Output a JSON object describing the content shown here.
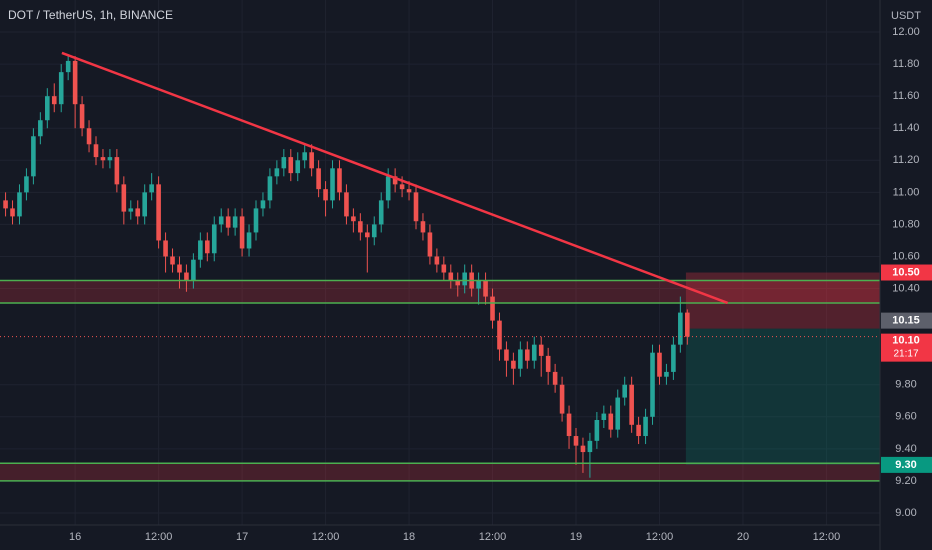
{
  "chart_data": {
    "type": "candlestick",
    "title": "DOT / TetherUS, 1h, BINANCE",
    "y_unit": "USDT",
    "up_color": "#26a69a",
    "down_color": "#ef5350",
    "grid": true,
    "xlim": [
      -10.8,
      115.7
    ],
    "ylim": [
      8.925,
      12.2
    ],
    "xticks": [
      {
        "value": 0,
        "label": "16"
      },
      {
        "value": 12,
        "label": "12:00"
      },
      {
        "value": 24,
        "label": "17"
      },
      {
        "value": 36,
        "label": "12:00"
      },
      {
        "value": 48,
        "label": "18"
      },
      {
        "value": 60,
        "label": "12:00"
      },
      {
        "value": 72,
        "label": "19"
      },
      {
        "value": 84,
        "label": "12:00"
      },
      {
        "value": 96,
        "label": "20"
      },
      {
        "value": 108,
        "label": "12:00"
      }
    ],
    "yticks": [
      {
        "value": 12.0,
        "label": "12.00"
      },
      {
        "value": 11.8,
        "label": "11.80"
      },
      {
        "value": 11.6,
        "label": "11.60"
      },
      {
        "value": 11.4,
        "label": "11.40"
      },
      {
        "value": 11.2,
        "label": "11.20"
      },
      {
        "value": 11.0,
        "label": "11.00"
      },
      {
        "value": 10.8,
        "label": "10.80"
      },
      {
        "value": 10.6,
        "label": "10.60"
      },
      {
        "value": 10.4,
        "label": "10.40"
      },
      {
        "value": 9.8,
        "label": "9.80"
      },
      {
        "value": 9.6,
        "label": "9.60"
      },
      {
        "value": 9.4,
        "label": "9.40"
      },
      {
        "value": 9.2,
        "label": "9.20"
      },
      {
        "value": 9.0,
        "label": "9.00"
      }
    ],
    "x": [
      -10,
      -9,
      -8,
      -7,
      -6,
      -5,
      -4,
      -3,
      -2,
      -1,
      0,
      1,
      2,
      3,
      4,
      5,
      6,
      7,
      8,
      9,
      10,
      11,
      12,
      13,
      14,
      15,
      16,
      17,
      18,
      19,
      20,
      21,
      22,
      23,
      24,
      25,
      26,
      27,
      28,
      29,
      30,
      31,
      32,
      33,
      34,
      35,
      36,
      37,
      38,
      39,
      40,
      41,
      42,
      43,
      44,
      45,
      46,
      47,
      48,
      49,
      50,
      51,
      52,
      53,
      54,
      55,
      56,
      57,
      58,
      59,
      60,
      61,
      62,
      63,
      64,
      65,
      66,
      67,
      68,
      69,
      70,
      71,
      72,
      73,
      74,
      75,
      76,
      77,
      78,
      79,
      80,
      81,
      82,
      83,
      84,
      85,
      86,
      87,
      88
    ],
    "open": [
      10.95,
      10.9,
      10.85,
      11.0,
      11.1,
      11.35,
      11.45,
      11.6,
      11.55,
      11.75,
      11.82,
      11.55,
      11.4,
      11.3,
      11.22,
      11.2,
      11.22,
      11.05,
      10.88,
      10.9,
      10.85,
      11.0,
      11.05,
      10.7,
      10.6,
      10.55,
      10.5,
      10.45,
      10.58,
      10.7,
      10.62,
      10.8,
      10.85,
      10.78,
      10.85,
      10.65,
      10.75,
      10.9,
      10.95,
      11.1,
      11.15,
      11.22,
      11.12,
      11.2,
      11.25,
      11.15,
      11.02,
      10.95,
      11.15,
      11.0,
      10.85,
      10.82,
      10.75,
      10.72,
      10.8,
      10.95,
      11.1,
      11.05,
      11.02,
      11.0,
      10.82,
      10.75,
      10.6,
      10.55,
      10.5,
      10.45,
      10.42,
      10.5,
      10.4,
      10.45,
      10.35,
      10.2,
      10.02,
      9.95,
      9.9,
      10.02,
      9.95,
      10.05,
      9.98,
      9.88,
      9.8,
      9.62,
      9.48,
      9.42,
      9.38,
      9.45,
      9.58,
      9.62,
      9.52,
      9.72,
      9.8,
      9.55,
      9.48,
      9.6,
      10.0,
      9.85,
      9.88,
      10.05,
      10.25
    ],
    "high": [
      11.0,
      10.95,
      11.05,
      11.15,
      11.4,
      11.5,
      11.65,
      11.68,
      11.8,
      11.86,
      11.85,
      11.6,
      11.45,
      11.35,
      11.27,
      11.27,
      11.27,
      11.1,
      10.95,
      10.95,
      11.05,
      11.12,
      11.1,
      10.75,
      10.65,
      10.6,
      10.55,
      10.62,
      10.75,
      10.75,
      10.85,
      10.9,
      10.9,
      10.9,
      10.9,
      10.8,
      10.95,
      11.0,
      11.15,
      11.2,
      11.27,
      11.27,
      11.25,
      11.3,
      11.3,
      11.2,
      11.07,
      11.2,
      11.2,
      11.05,
      10.9,
      10.87,
      10.8,
      10.85,
      11.0,
      11.15,
      11.15,
      11.1,
      11.07,
      11.05,
      10.87,
      10.8,
      10.65,
      10.6,
      10.55,
      10.5,
      10.55,
      10.55,
      10.5,
      10.5,
      10.4,
      10.25,
      10.07,
      10.0,
      10.07,
      10.07,
      10.1,
      10.1,
      10.03,
      9.93,
      9.85,
      9.67,
      9.53,
      9.47,
      9.5,
      9.63,
      9.67,
      9.67,
      9.77,
      9.85,
      9.85,
      9.6,
      9.65,
      10.05,
      10.05,
      9.93,
      10.1,
      10.35,
      10.27
    ],
    "low": [
      10.85,
      10.8,
      10.8,
      10.95,
      11.05,
      11.3,
      11.4,
      11.5,
      11.5,
      11.7,
      11.4,
      11.35,
      11.25,
      11.17,
      11.15,
      11.15,
      11.0,
      10.8,
      10.83,
      10.8,
      10.8,
      10.95,
      10.65,
      10.5,
      10.5,
      10.4,
      10.38,
      10.4,
      10.53,
      10.57,
      10.57,
      10.75,
      10.73,
      10.73,
      10.6,
      10.6,
      10.7,
      10.85,
      10.9,
      11.05,
      11.1,
      11.07,
      11.07,
      11.15,
      11.1,
      10.97,
      10.85,
      10.9,
      10.95,
      10.8,
      10.75,
      10.7,
      10.5,
      10.67,
      10.75,
      10.9,
      11.0,
      10.97,
      10.95,
      10.77,
      10.7,
      10.55,
      10.5,
      10.45,
      10.4,
      10.35,
      10.37,
      10.35,
      10.3,
      10.3,
      10.15,
      9.95,
      9.85,
      9.8,
      9.85,
      9.9,
      9.9,
      9.85,
      9.8,
      9.75,
      9.57,
      9.4,
      9.3,
      9.25,
      9.22,
      9.4,
      9.53,
      9.47,
      9.47,
      9.67,
      9.5,
      9.43,
      9.43,
      9.55,
      9.8,
      9.8,
      9.83,
      10.0,
      10.05
    ],
    "close": [
      10.9,
      10.85,
      11.0,
      11.1,
      11.35,
      11.45,
      11.6,
      11.55,
      11.75,
      11.82,
      11.55,
      11.4,
      11.3,
      11.22,
      11.2,
      11.22,
      11.05,
      10.88,
      10.9,
      10.85,
      11.0,
      11.05,
      10.7,
      10.6,
      10.55,
      10.5,
      10.45,
      10.58,
      10.7,
      10.62,
      10.8,
      10.85,
      10.78,
      10.85,
      10.65,
      10.75,
      10.9,
      10.95,
      11.1,
      11.15,
      11.22,
      11.12,
      11.2,
      11.25,
      11.15,
      11.02,
      10.95,
      11.15,
      11.0,
      10.85,
      10.82,
      10.75,
      10.72,
      10.8,
      10.95,
      11.1,
      11.05,
      11.02,
      11.0,
      10.82,
      10.75,
      10.6,
      10.55,
      10.5,
      10.45,
      10.42,
      10.5,
      10.4,
      10.45,
      10.35,
      10.2,
      10.02,
      9.95,
      9.9,
      10.02,
      9.95,
      10.05,
      9.98,
      9.88,
      9.8,
      9.62,
      9.48,
      9.42,
      9.38,
      9.45,
      9.58,
      9.62,
      9.52,
      9.72,
      9.8,
      9.55,
      9.48,
      9.6,
      10.0,
      9.85,
      9.88,
      10.05,
      10.25,
      10.1
    ],
    "trendline": {
      "x": [
        -1.9,
        93.8
      ],
      "y": [
        11.87,
        10.31
      ],
      "color": "#f23645"
    },
    "levels": [
      10.45,
      10.31,
      9.31,
      9.2
    ],
    "level_color": "#4caf50",
    "position": {
      "x_start": 87.8,
      "stop": 10.5,
      "stop_label": "10.50",
      "entry": 10.15,
      "entry_label": "10.15",
      "target": 9.3,
      "target_label": "9.30"
    },
    "last_price": {
      "value": 10.1,
      "label": "10.10",
      "countdown": "21:17"
    }
  }
}
